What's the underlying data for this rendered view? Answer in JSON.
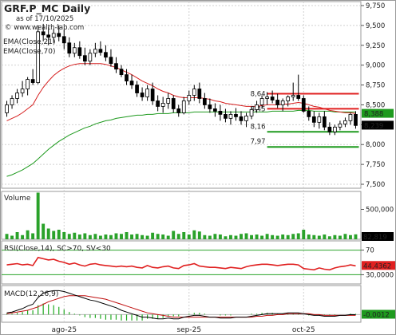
{
  "header": {
    "title": "GRF.P_MC Daily",
    "subtitle": "as of 17/10/2025",
    "site": "© www.wealth-lab.com"
  },
  "legend": {
    "ema21": "EMA(Close,21)",
    "ema70": "EMA(Close,70)"
  },
  "colors": {
    "up_candle": "#ffffff",
    "down_candle": "#000000",
    "ema21": "#d62020",
    "ema70": "#1e9a1e",
    "volume": "#2aa22a",
    "rsi": "#e02020",
    "macd": "#000000",
    "macd_signal": "#c01010",
    "macd_hist": "#22aa22",
    "resistance": "#e02020",
    "support": "#1e9a1e",
    "grid": "#d0d0d0"
  },
  "chart_data": [
    {
      "type": "candlestick",
      "title": "GRF.P_MC Daily",
      "subtitle": "as of 17/10/2025",
      "ylim": [
        7.45,
        9.8
      ],
      "yticks": [
        "7,500",
        "7,750",
        "8,000",
        "8,250",
        "8,500",
        "8,750",
        "9,000",
        "9,250",
        "9,500",
        "9,750"
      ],
      "ytick_values": [
        7.5,
        7.75,
        8.0,
        8.25,
        8.5,
        8.75,
        9.0,
        9.25,
        9.5,
        9.75
      ],
      "x_labels": [
        "ago-25",
        "sep-25",
        "oct-25"
      ],
      "x_label_index": [
        11,
        35,
        57
      ],
      "ohlc": [
        [
          8.4,
          8.55,
          8.35,
          8.5
        ],
        [
          8.5,
          8.62,
          8.45,
          8.58
        ],
        [
          8.58,
          8.7,
          8.52,
          8.65
        ],
        [
          8.65,
          8.8,
          8.6,
          8.7
        ],
        [
          8.7,
          8.85,
          8.62,
          8.82
        ],
        [
          8.82,
          8.95,
          8.75,
          8.78
        ],
        [
          8.78,
          9.5,
          8.76,
          9.42
        ],
        [
          9.42,
          9.52,
          9.3,
          9.38
        ],
        [
          9.38,
          9.48,
          9.25,
          9.35
        ],
        [
          9.35,
          9.46,
          9.28,
          9.4
        ],
        [
          9.4,
          9.5,
          9.3,
          9.36
        ],
        [
          9.36,
          9.45,
          9.2,
          9.28
        ],
        [
          9.28,
          9.35,
          9.1,
          9.15
        ],
        [
          9.15,
          9.28,
          9.1,
          9.22
        ],
        [
          9.22,
          9.3,
          9.08,
          9.12
        ],
        [
          9.12,
          9.22,
          9.0,
          9.05
        ],
        [
          9.05,
          9.2,
          9.0,
          9.15
        ],
        [
          9.15,
          9.28,
          9.1,
          9.2
        ],
        [
          9.2,
          9.3,
          9.12,
          9.16
        ],
        [
          9.16,
          9.25,
          9.05,
          9.1
        ],
        [
          9.1,
          9.2,
          8.98,
          9.02
        ],
        [
          9.02,
          9.1,
          8.9,
          8.95
        ],
        [
          8.95,
          9.0,
          8.85,
          8.88
        ],
        [
          8.88,
          8.95,
          8.75,
          8.8
        ],
        [
          8.8,
          8.88,
          8.7,
          8.75
        ],
        [
          8.75,
          8.8,
          8.6,
          8.65
        ],
        [
          8.65,
          8.72,
          8.55,
          8.6
        ],
        [
          8.6,
          8.75,
          8.55,
          8.7
        ],
        [
          8.7,
          8.78,
          8.5,
          8.55
        ],
        [
          8.55,
          8.62,
          8.42,
          8.48
        ],
        [
          8.48,
          8.6,
          8.4,
          8.52
        ],
        [
          8.52,
          8.65,
          8.45,
          8.58
        ],
        [
          8.58,
          8.62,
          8.4,
          8.45
        ],
        [
          8.45,
          8.5,
          8.35,
          8.4
        ],
        [
          8.4,
          8.6,
          8.38,
          8.55
        ],
        [
          8.55,
          8.68,
          8.5,
          8.62
        ],
        [
          8.62,
          8.75,
          8.55,
          8.7
        ],
        [
          8.7,
          8.78,
          8.52,
          8.58
        ],
        [
          8.58,
          8.65,
          8.45,
          8.5
        ],
        [
          8.5,
          8.58,
          8.4,
          8.45
        ],
        [
          8.45,
          8.52,
          8.35,
          8.42
        ],
        [
          8.42,
          8.5,
          8.3,
          8.38
        ],
        [
          8.38,
          8.45,
          8.28,
          8.33
        ],
        [
          8.33,
          8.42,
          8.25,
          8.38
        ],
        [
          8.38,
          8.46,
          8.3,
          8.35
        ],
        [
          8.35,
          8.42,
          8.25,
          8.3
        ],
        [
          8.3,
          8.4,
          8.22,
          8.36
        ],
        [
          8.36,
          8.48,
          8.32,
          8.44
        ],
        [
          8.44,
          8.55,
          8.4,
          8.5
        ],
        [
          8.5,
          8.62,
          8.45,
          8.58
        ],
        [
          8.58,
          8.66,
          8.5,
          8.6
        ],
        [
          8.6,
          8.68,
          8.52,
          8.56
        ],
        [
          8.56,
          8.64,
          8.46,
          8.5
        ],
        [
          8.5,
          8.58,
          8.42,
          8.55
        ],
        [
          8.55,
          8.62,
          8.48,
          8.6
        ],
        [
          8.6,
          8.78,
          8.55,
          8.62
        ],
        [
          8.62,
          8.88,
          8.55,
          8.58
        ],
        [
          8.58,
          8.62,
          8.4,
          8.42
        ],
        [
          8.42,
          8.48,
          8.3,
          8.35
        ],
        [
          8.35,
          8.42,
          8.22,
          8.28
        ],
        [
          8.28,
          8.4,
          8.2,
          8.35
        ],
        [
          8.35,
          8.42,
          8.18,
          8.22
        ],
        [
          8.22,
          8.28,
          8.12,
          8.16
        ],
        [
          8.16,
          8.25,
          8.12,
          8.22
        ],
        [
          8.22,
          8.3,
          8.18,
          8.26
        ],
        [
          8.26,
          8.34,
          8.22,
          8.3
        ],
        [
          8.3,
          8.4,
          8.25,
          8.38
        ],
        [
          8.38,
          8.42,
          8.2,
          8.24
        ]
      ],
      "ema21": [
        8.3,
        8.33,
        8.36,
        8.4,
        8.45,
        8.5,
        8.62,
        8.72,
        8.8,
        8.87,
        8.92,
        8.96,
        8.99,
        9.01,
        9.02,
        9.02,
        9.02,
        9.02,
        9.02,
        9.01,
        8.99,
        8.97,
        8.94,
        8.91,
        8.88,
        8.84,
        8.8,
        8.77,
        8.74,
        8.7,
        8.67,
        8.65,
        8.62,
        8.6,
        8.59,
        8.59,
        8.59,
        8.59,
        8.58,
        8.57,
        8.55,
        8.54,
        8.52,
        8.51,
        8.5,
        8.49,
        8.48,
        8.48,
        8.48,
        8.49,
        8.5,
        8.5,
        8.5,
        8.51,
        8.51,
        8.52,
        8.53,
        8.52,
        8.5,
        8.48,
        8.47,
        8.45,
        8.43,
        8.42,
        8.41,
        8.4,
        8.4,
        8.39
      ],
      "ema70": [
        7.6,
        7.62,
        7.65,
        7.68,
        7.72,
        7.76,
        7.82,
        7.88,
        7.94,
        7.99,
        8.04,
        8.08,
        8.12,
        8.15,
        8.18,
        8.21,
        8.23,
        8.26,
        8.28,
        8.3,
        8.31,
        8.33,
        8.34,
        8.35,
        8.36,
        8.37,
        8.37,
        8.38,
        8.38,
        8.39,
        8.39,
        8.39,
        8.4,
        8.4,
        8.4,
        8.4,
        8.41,
        8.41,
        8.41,
        8.41,
        8.41,
        8.41,
        8.41,
        8.41,
        8.41,
        8.41,
        8.41,
        8.41,
        8.41,
        8.41,
        8.41,
        8.42,
        8.42,
        8.42,
        8.42,
        8.42,
        8.43,
        8.43,
        8.43,
        8.42,
        8.42,
        8.42,
        8.42,
        8.41,
        8.41,
        8.41,
        8.41,
        8.41
      ],
      "resistance_levels": [
        8.64,
        8.45
      ],
      "support_levels": [
        8.16,
        7.97
      ],
      "level_labels": [
        "8,64",
        "8,45",
        "8,16",
        "7,97"
      ],
      "last_price_labels": [
        {
          "value": 8.388,
          "label": "8,388",
          "color": "#1e9a1e"
        },
        {
          "value": 8.239,
          "label": "8,239",
          "color": "#000000"
        }
      ]
    },
    {
      "type": "bar",
      "name": "Volume",
      "ylim": [
        0,
        800000
      ],
      "ytick_label": "500,000",
      "ytick_value": 500000,
      "last_label": "82,819",
      "values": [
        90000,
        60000,
        120000,
        70000,
        150000,
        100000,
        780000,
        260000,
        180000,
        140000,
        160000,
        120000,
        90000,
        110000,
        80000,
        100000,
        70000,
        90000,
        60000,
        80000,
        70000,
        100000,
        90000,
        120000,
        80000,
        90000,
        70000,
        60000,
        110000,
        90000,
        80000,
        60000,
        140000,
        90000,
        120000,
        80000,
        150000,
        130000,
        70000,
        60000,
        90000,
        80000,
        50000,
        70000,
        60000,
        90000,
        100000,
        70000,
        80000,
        60000,
        90000,
        70000,
        60000,
        80000,
        70000,
        90000,
        100000,
        160000,
        80000,
        70000,
        60000,
        80000,
        50000,
        70000,
        60000,
        90000,
        70000,
        82819
      ]
    },
    {
      "type": "line",
      "name": "RSI(Close,14), SC>70, SV<30",
      "ylim": [
        15,
        85
      ],
      "yticks": [
        "70",
        "30,0000"
      ],
      "ytick_values": [
        70,
        30
      ],
      "last_label": "44,4362",
      "values": [
        46,
        47,
        48,
        46,
        47,
        45,
        58,
        56,
        54,
        55,
        52,
        50,
        47,
        49,
        46,
        44,
        47,
        48,
        46,
        45,
        44,
        43,
        44,
        43,
        44,
        42,
        41,
        45,
        42,
        41,
        43,
        44,
        41,
        40,
        45,
        46,
        48,
        44,
        43,
        42,
        42,
        41,
        40,
        42,
        41,
        40,
        43,
        45,
        46,
        47,
        47,
        46,
        45,
        46,
        47,
        47,
        46,
        40,
        39,
        38,
        41,
        39,
        38,
        41,
        43,
        44,
        46,
        44.4362
      ]
    },
    {
      "type": "line",
      "name": "MACD(12,26,9)",
      "ylim": [
        -0.09,
        0.34
      ],
      "last_label": "-0,0012",
      "macd": [
        0.02,
        0.03,
        0.05,
        0.07,
        0.1,
        0.12,
        0.2,
        0.25,
        0.27,
        0.28,
        0.28,
        0.27,
        0.25,
        0.23,
        0.21,
        0.19,
        0.17,
        0.16,
        0.14,
        0.12,
        0.1,
        0.08,
        0.05,
        0.03,
        0.01,
        -0.01,
        -0.03,
        -0.03,
        -0.04,
        -0.05,
        -0.05,
        -0.04,
        -0.05,
        -0.05,
        -0.03,
        -0.02,
        -0.01,
        -0.01,
        -0.02,
        -0.03,
        -0.03,
        -0.04,
        -0.04,
        -0.04,
        -0.03,
        -0.03,
        -0.03,
        -0.02,
        -0.01,
        0.0,
        0.01,
        0.01,
        0.01,
        0.01,
        0.02,
        0.02,
        0.02,
        0.01,
        0.0,
        -0.01,
        -0.01,
        -0.02,
        -0.02,
        -0.02,
        -0.01,
        -0.01,
        -0.0,
        -0.0012
      ],
      "signal": [
        0.01,
        0.02,
        0.03,
        0.04,
        0.05,
        0.07,
        0.09,
        0.12,
        0.15,
        0.17,
        0.19,
        0.21,
        0.22,
        0.22,
        0.22,
        0.22,
        0.21,
        0.2,
        0.19,
        0.18,
        0.16,
        0.14,
        0.12,
        0.1,
        0.08,
        0.06,
        0.04,
        0.02,
        0.01,
        0.0,
        -0.01,
        -0.02,
        -0.03,
        -0.03,
        -0.03,
        -0.03,
        -0.03,
        -0.03,
        -0.03,
        -0.03,
        -0.03,
        -0.03,
        -0.03,
        -0.03,
        -0.03,
        -0.03,
        -0.03,
        -0.03,
        -0.02,
        -0.02,
        -0.01,
        -0.01,
        0.0,
        0.0,
        0.01,
        0.01,
        0.01,
        0.01,
        0.01,
        0.0,
        0.0,
        -0.01,
        -0.01,
        -0.01,
        -0.01,
        -0.01,
        -0.01,
        -0.01
      ]
    }
  ]
}
